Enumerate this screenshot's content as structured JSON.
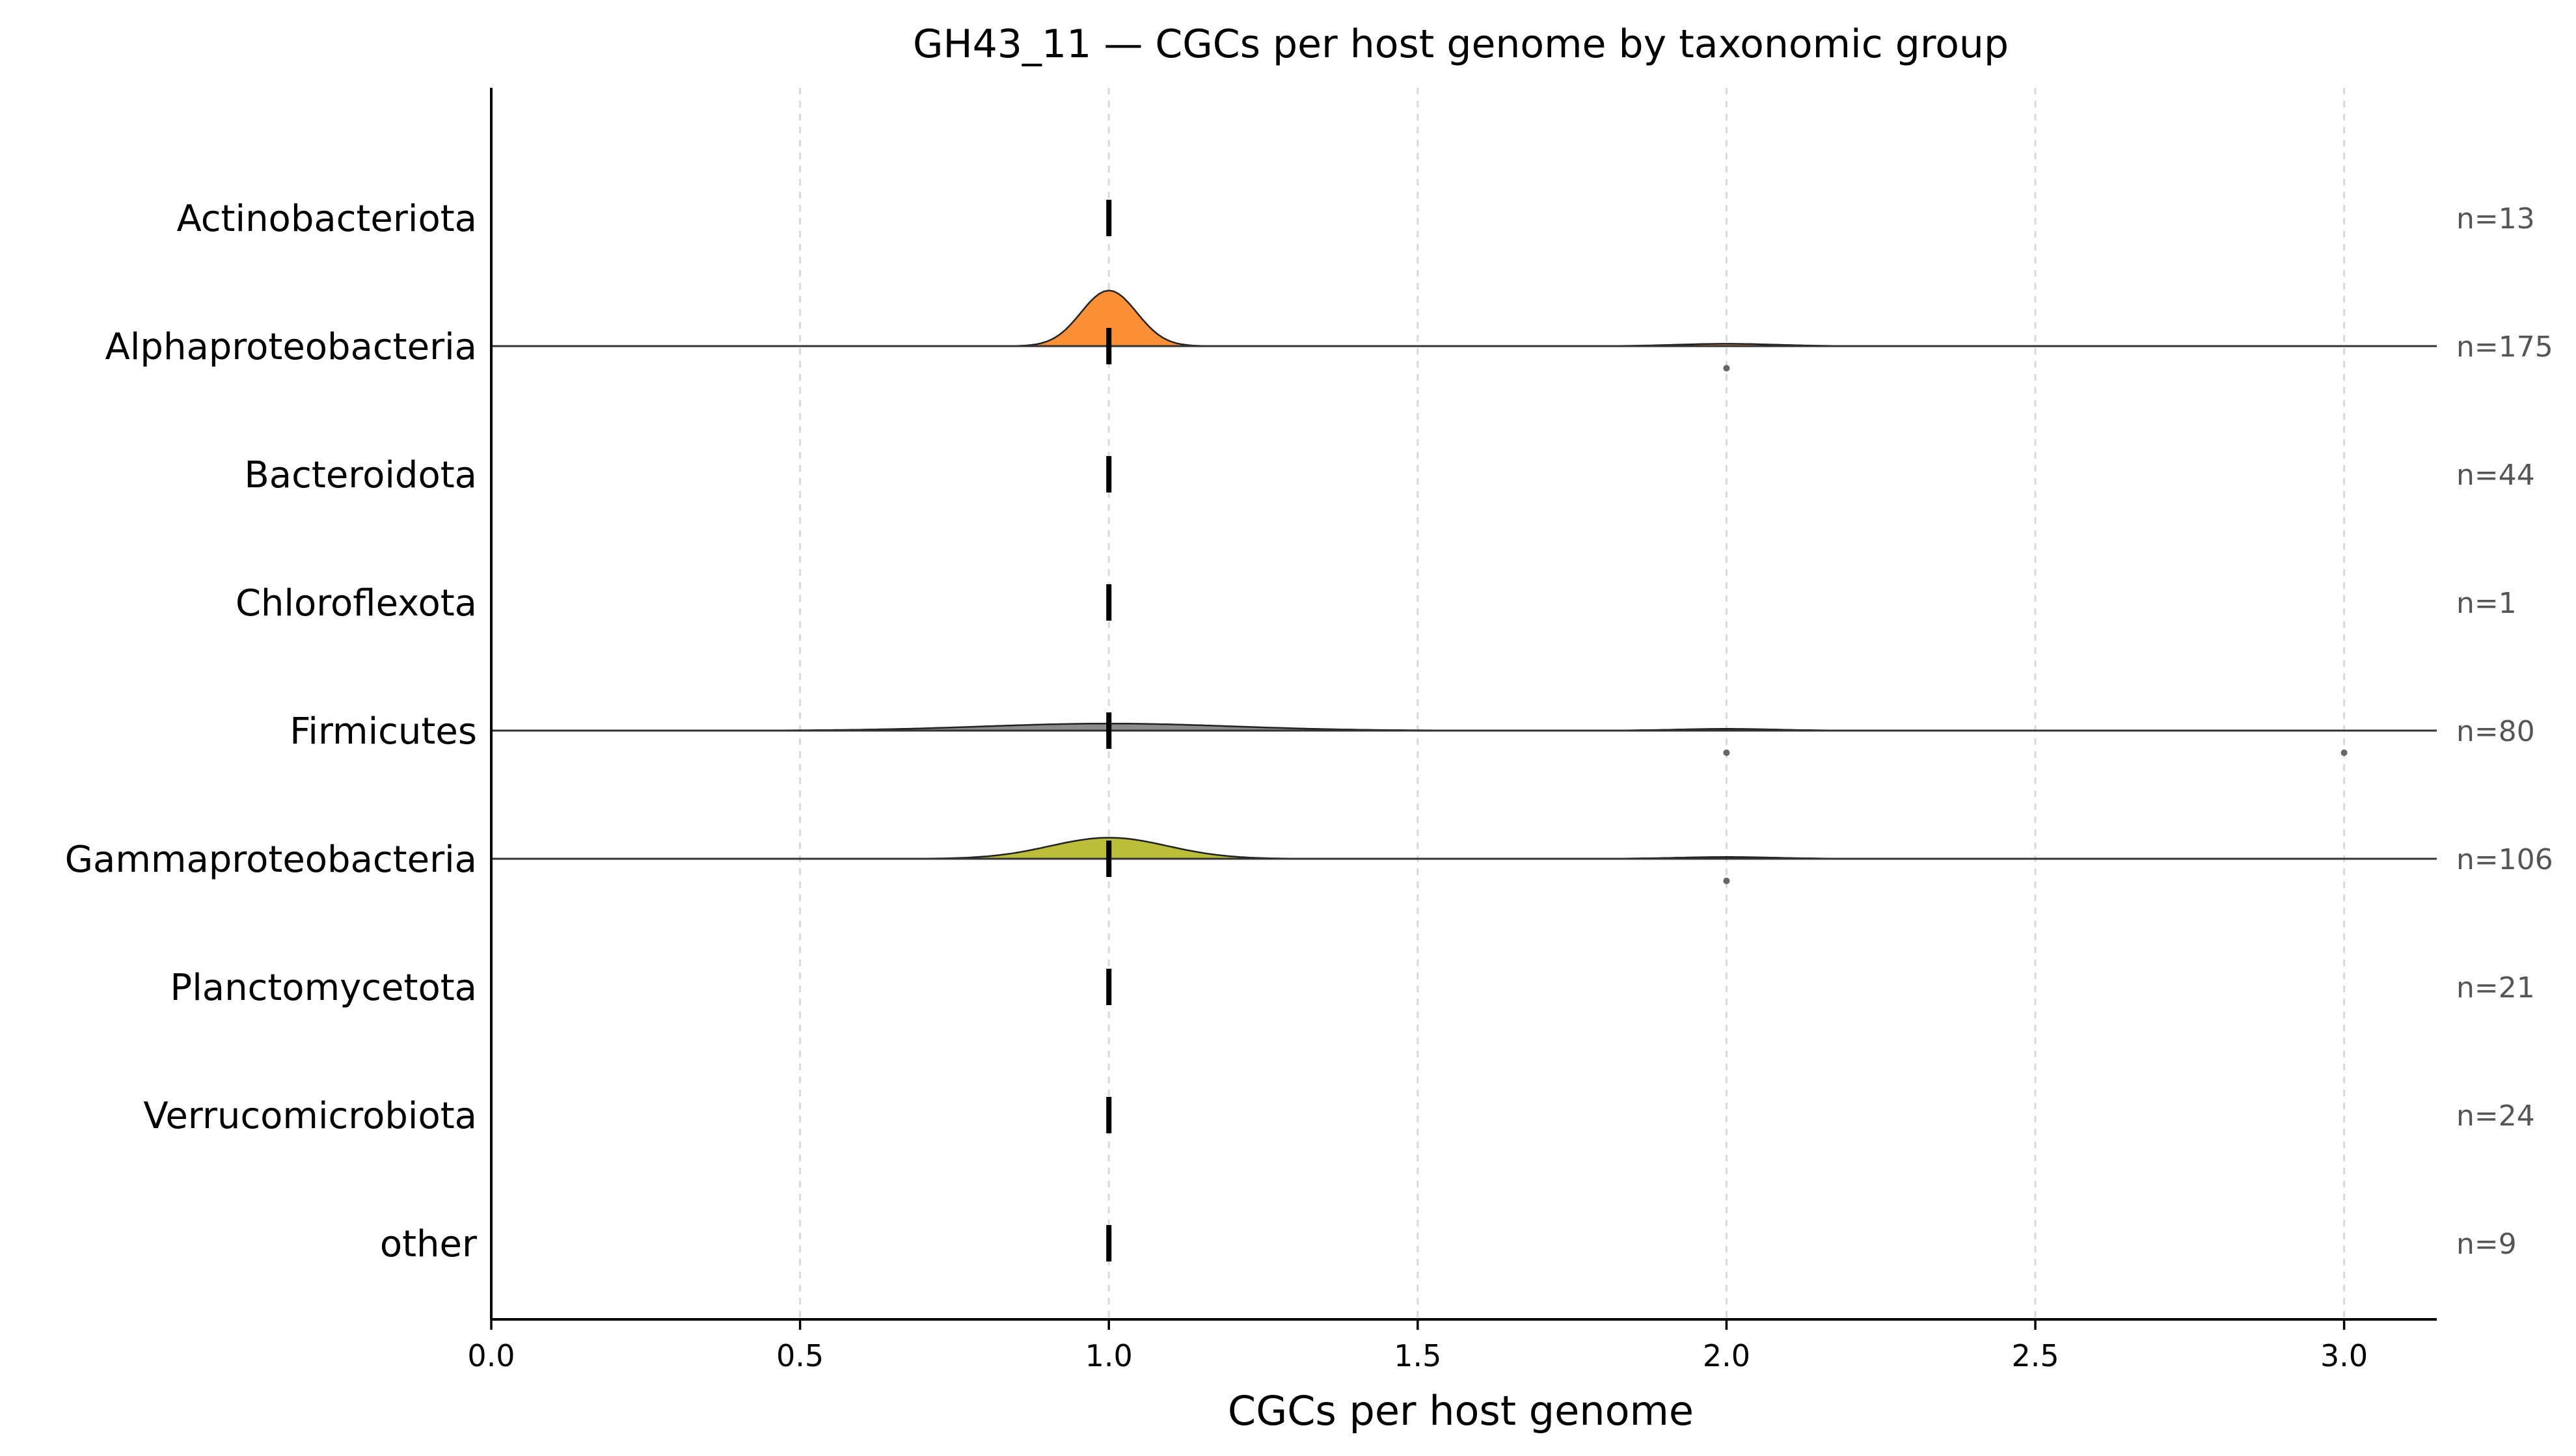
{
  "chart_data": {
    "type": "ridgeline",
    "title": "GH43_11 — CGCs per host genome by taxonomic group",
    "xlabel": "CGCs per host genome",
    "ylabel": "",
    "xlim": [
      0,
      3.15
    ],
    "xticks": [
      0.0,
      0.5,
      1.0,
      1.5,
      2.0,
      2.5,
      3.0
    ],
    "xtick_labels": [
      "0.0",
      "0.5",
      "1.0",
      "1.5",
      "2.0",
      "2.5",
      "3.0"
    ],
    "grid": "vertical dashed",
    "series": [
      {
        "name": "Actinobacteriota",
        "n_label": "n=13",
        "median": 1.0,
        "density": null,
        "outliers": []
      },
      {
        "name": "Alphaproteobacteria",
        "n_label": "n=175",
        "median": 1.0,
        "density": {
          "peak": 1.0,
          "bandwidth": 0.045,
          "height": 0.95,
          "secondary_peak": 2.0,
          "secondary_height": 0.04
        },
        "color": "#fb8f35",
        "outliers": [
          2.0
        ]
      },
      {
        "name": "Bacteroidota",
        "n_label": "n=44",
        "median": 1.0,
        "density": null,
        "outliers": []
      },
      {
        "name": "Chloroflexota",
        "n_label": "n=1",
        "median": 1.0,
        "density": null,
        "outliers": []
      },
      {
        "name": "Firmicutes",
        "n_label": "n=80",
        "median": 1.0,
        "density": {
          "peak": 1.0,
          "bandwidth": 0.2,
          "height": 0.12,
          "secondary_peak": 2.0,
          "secondary_height": 0.03
        },
        "color": "#8c8c8c",
        "outliers": [
          2.0,
          3.0
        ]
      },
      {
        "name": "Gammaproteobacteria",
        "n_label": "n=106",
        "median": 1.0,
        "density": {
          "peak": 1.0,
          "bandwidth": 0.095,
          "height": 0.36,
          "secondary_peak": 2.0,
          "secondary_height": 0.03
        },
        "color": "#bcbd39",
        "outliers": [
          2.0
        ]
      },
      {
        "name": "Planctomycetota",
        "n_label": "n=21",
        "median": 1.0,
        "density": null,
        "outliers": []
      },
      {
        "name": "Verrucomicrobiota",
        "n_label": "n=24",
        "median": 1.0,
        "density": null,
        "outliers": []
      },
      {
        "name": "other",
        "n_label": "n=9",
        "median": 1.0,
        "density": null,
        "outliers": []
      }
    ]
  }
}
